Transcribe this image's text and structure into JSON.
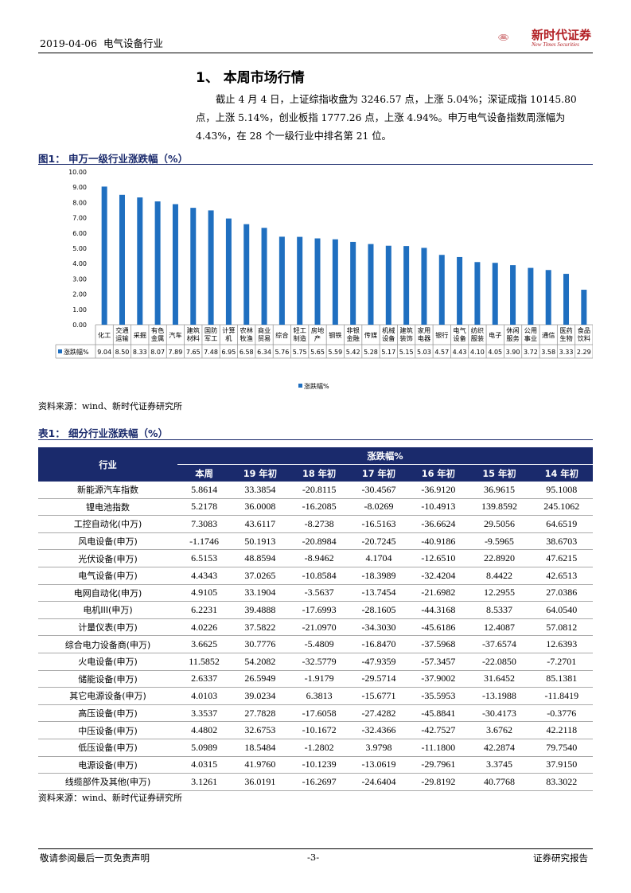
{
  "header": {
    "date": "2019-04-06",
    "industry": "电气设备行业",
    "logo_cn": "新时代证券",
    "logo_en": "New Times Securities",
    "logo_mark": "NEW TIMES"
  },
  "section": {
    "title": "1、 本周市场行情",
    "paragraph_line1": "截止 4 月 4 日，上证综指收盘为 3246.57 点，上涨 5.04%；深证成指 10145.80",
    "paragraph_line2": "点，上涨 5.14%，创业板指 1777.26 点，上涨 4.94%。申万电气设备指数周涨幅为",
    "paragraph_line3": "4.43%，在 28 个一级行业中排名第 21 位。"
  },
  "figure1": {
    "caption": "图1：  申万一级行业涨跌幅（%）",
    "source": "资料来源：wind、新时代证券研究所"
  },
  "chart_data": {
    "type": "bar",
    "categories": [
      "化工",
      "交通运输",
      "采掘",
      "有色金属",
      "汽车",
      "建筑材料",
      "国防军工",
      "计算机",
      "农林牧渔",
      "商业贸易",
      "综合",
      "轻工制造",
      "房地产",
      "钢铁",
      "非银金融",
      "传媒",
      "机械设备",
      "建筑装饰",
      "家用电器",
      "银行",
      "电气设备",
      "纺织服装",
      "电子",
      "休闲服务",
      "公用事业",
      "通信",
      "医药生物",
      "食品饮料"
    ],
    "category_lines": [
      [
        "化工"
      ],
      [
        "交通",
        "运输"
      ],
      [
        "采掘"
      ],
      [
        "有色",
        "金属"
      ],
      [
        "汽车"
      ],
      [
        "建筑",
        "材料"
      ],
      [
        "国防",
        "军工"
      ],
      [
        "计算",
        "机"
      ],
      [
        "农林",
        "牧渔"
      ],
      [
        "商业",
        "贸易"
      ],
      [
        "综合"
      ],
      [
        "轻工",
        "制造"
      ],
      [
        "房地",
        "产"
      ],
      [
        "钢铁"
      ],
      [
        "非银",
        "金融"
      ],
      [
        "传媒"
      ],
      [
        "机械",
        "设备"
      ],
      [
        "建筑",
        "装饰"
      ],
      [
        "家用",
        "电器"
      ],
      [
        "银行"
      ],
      [
        "电气",
        "设备"
      ],
      [
        "纺织",
        "服装"
      ],
      [
        "电子"
      ],
      [
        "休闲",
        "服务"
      ],
      [
        "公用",
        "事业"
      ],
      [
        "通信"
      ],
      [
        "医药",
        "生物"
      ],
      [
        "食品",
        "饮料"
      ]
    ],
    "series": [
      {
        "name": "涨跌幅%",
        "values": [
          9.04,
          8.5,
          8.33,
          8.07,
          7.89,
          7.65,
          7.48,
          6.95,
          6.58,
          6.34,
          5.76,
          5.75,
          5.65,
          5.59,
          5.42,
          5.28,
          5.17,
          5.15,
          5.03,
          4.57,
          4.43,
          4.1,
          4.05,
          3.9,
          3.72,
          3.58,
          3.33,
          2.29
        ]
      }
    ],
    "value_labels": [
      "9.04",
      "8.50",
      "8.33",
      "8.07",
      "7.89",
      "7.65",
      "7.48",
      "6.95",
      "6.58",
      "6.34",
      "5.76",
      "5.75",
      "5.65",
      "5.59",
      "5.42",
      "5.28",
      "5.17",
      "5.15",
      "5.03",
      "4.57",
      "4.43",
      "4.10",
      "4.05",
      "3.90",
      "3.72",
      "3.58",
      "3.33",
      "2.29"
    ],
    "yticks": [
      "0.00",
      "1.00",
      "2.00",
      "3.00",
      "4.00",
      "5.00",
      "6.00",
      "7.00",
      "8.00",
      "9.00",
      "10.00"
    ],
    "ylim": [
      0,
      10
    ],
    "legend_label": "涨跌幅%",
    "legend_position": "bottom",
    "color": "#1f6fc0",
    "grid": false
  },
  "table1": {
    "caption": "表1：  细分行业涨跌幅（%）",
    "col_industry": "行业",
    "group_header": "涨跌幅%",
    "columns": [
      "本周",
      "19 年初",
      "18 年初",
      "17 年初",
      "16 年初",
      "15 年初",
      "14 年初"
    ],
    "rows": [
      [
        "新能源汽车指数",
        "5.8614",
        "33.3854",
        "-20.8115",
        "-30.4567",
        "-36.9120",
        "36.9615",
        "95.1008"
      ],
      [
        "锂电池指数",
        "5.2178",
        "36.0008",
        "-16.2085",
        "-8.0269",
        "-10.4913",
        "139.8592",
        "245.1062"
      ],
      [
        "工控自动化(中万)",
        "7.3083",
        "43.6117",
        "-8.2738",
        "-16.5163",
        "-36.6624",
        "29.5056",
        "64.6519"
      ],
      [
        "风电设备(申万)",
        "-1.1746",
        "50.1913",
        "-20.8984",
        "-20.7245",
        "-40.9186",
        "-9.5965",
        "38.6703"
      ],
      [
        "光伏设备(申万)",
        "6.5153",
        "48.8594",
        "-8.9462",
        "4.1704",
        "-12.6510",
        "22.8920",
        "47.6215"
      ],
      [
        "电气设备(申万)",
        "4.4343",
        "37.0265",
        "-10.8584",
        "-18.3989",
        "-32.4204",
        "8.4422",
        "42.6513"
      ],
      [
        "电网自动化(申万)",
        "4.9105",
        "33.1904",
        "-3.5637",
        "-13.7454",
        "-21.6982",
        "12.2955",
        "27.0386"
      ],
      [
        "电机III(申万)",
        "6.2231",
        "39.4888",
        "-17.6993",
        "-28.1605",
        "-44.3168",
        "8.5337",
        "64.0540"
      ],
      [
        "计量仪表(申万)",
        "4.0226",
        "37.5822",
        "-21.0970",
        "-34.3030",
        "-45.6186",
        "12.4087",
        "57.0812"
      ],
      [
        "综合电力设备商(申万)",
        "3.6625",
        "30.7776",
        "-5.4809",
        "-16.8470",
        "-37.5968",
        "-37.6574",
        "12.6393"
      ],
      [
        "火电设备(申万)",
        "11.5852",
        "54.2082",
        "-32.5779",
        "-47.9359",
        "-57.3457",
        "-22.0850",
        "-7.2701"
      ],
      [
        "储能设备(申万)",
        "2.6337",
        "26.5949",
        "-1.9179",
        "-29.5714",
        "-37.9002",
        "31.6452",
        "85.1381"
      ],
      [
        "其它电源设备(申万)",
        "4.0103",
        "39.0234",
        "6.3813",
        "-15.6771",
        "-35.5953",
        "-13.1988",
        "-11.8419"
      ],
      [
        "高压设备(申万)",
        "3.3537",
        "27.7828",
        "-17.6058",
        "-27.4282",
        "-45.8841",
        "-30.4173",
        "-0.3776"
      ],
      [
        "中压设备(申万)",
        "4.4802",
        "32.6753",
        "-10.1672",
        "-32.4366",
        "-42.7527",
        "3.6762",
        "42.2118"
      ],
      [
        "低压设备(申万)",
        "5.0989",
        "18.5484",
        "-1.2802",
        "3.9798",
        "-11.1800",
        "42.2874",
        "79.7540"
      ],
      [
        "电源设备(申万)",
        "4.0315",
        "41.9760",
        "-10.1239",
        "-13.0619",
        "-29.7961",
        "3.3745",
        "37.9150"
      ],
      [
        "线缆部件及其他(申万)",
        "3.1261",
        "36.0191",
        "-16.2697",
        "-24.6404",
        "-29.8192",
        "40.7768",
        "83.3022"
      ]
    ],
    "source": "资料来源：wind、新时代证券研究所"
  },
  "footer": {
    "left": "敬请参阅最后一页免责声明",
    "center": "-3-",
    "right": "证券研究报告"
  }
}
